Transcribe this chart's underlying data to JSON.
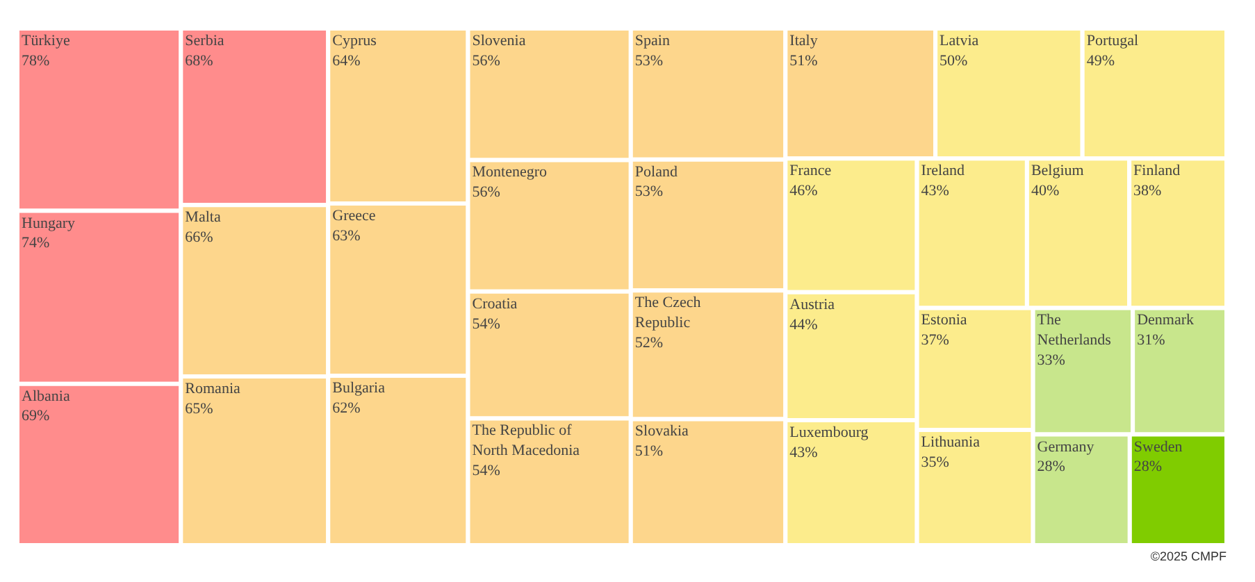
{
  "chart_data": {
    "type": "other",
    "categories": [
      "Türkiye",
      "Hungary",
      "Albania",
      "Serbia",
      "Malta",
      "Romania",
      "Cyprus",
      "Greece",
      "Bulgaria",
      "Slovenia",
      "Montenegro",
      "Croatia",
      "The Republic of North Macedonia",
      "Spain",
      "Poland",
      "The Czech Republic",
      "Slovakia",
      "Italy",
      "Latvia",
      "Portugal",
      "France",
      "Austria",
      "Luxembourg",
      "Ireland",
      "Belgium",
      "Finland",
      "Estonia",
      "Lithuania",
      "The Netherlands",
      "Denmark",
      "Germany",
      "Sweden"
    ],
    "values": [
      78,
      74,
      69,
      68,
      66,
      65,
      64,
      63,
      62,
      56,
      56,
      54,
      54,
      53,
      53,
      52,
      51,
      51,
      50,
      49,
      46,
      44,
      43,
      43,
      40,
      38,
      37,
      35,
      33,
      31,
      28,
      28
    ],
    "value_labels": [
      "78%",
      "74%",
      "69%",
      "68%",
      "66%",
      "65%",
      "64%",
      "63%",
      "62%",
      "56%",
      "56%",
      "54%",
      "54%",
      "53%",
      "53%",
      "52%",
      "51%",
      "51%",
      "50%",
      "49%",
      "46%",
      "44%",
      "43%",
      "43%",
      "40%",
      "38%",
      "37%",
      "35%",
      "33%",
      "31%",
      "28%",
      "28%"
    ],
    "colors": [
      "#ff8c8c",
      "#ff8c8c",
      "#ff8c8c",
      "#ff8c8c",
      "#fdd68c",
      "#fdd68c",
      "#fdd68c",
      "#fdd68c",
      "#fdd68c",
      "#fdd68c",
      "#fdd68c",
      "#fdd68c",
      "#fdd68c",
      "#fdd68c",
      "#fdd68c",
      "#fdd68c",
      "#fdd68c",
      "#fdd68c",
      "#fcec8c",
      "#fcec8c",
      "#fcec8c",
      "#fcec8c",
      "#fcec8c",
      "#fcec8c",
      "#fcec8c",
      "#fcec8c",
      "#fcec8c",
      "#fcec8c",
      "#c8e68c",
      "#c8e68c",
      "#c8e68c",
      "#80cc00"
    ],
    "annotations": [
      "©2025 CMPF"
    ]
  }
}
